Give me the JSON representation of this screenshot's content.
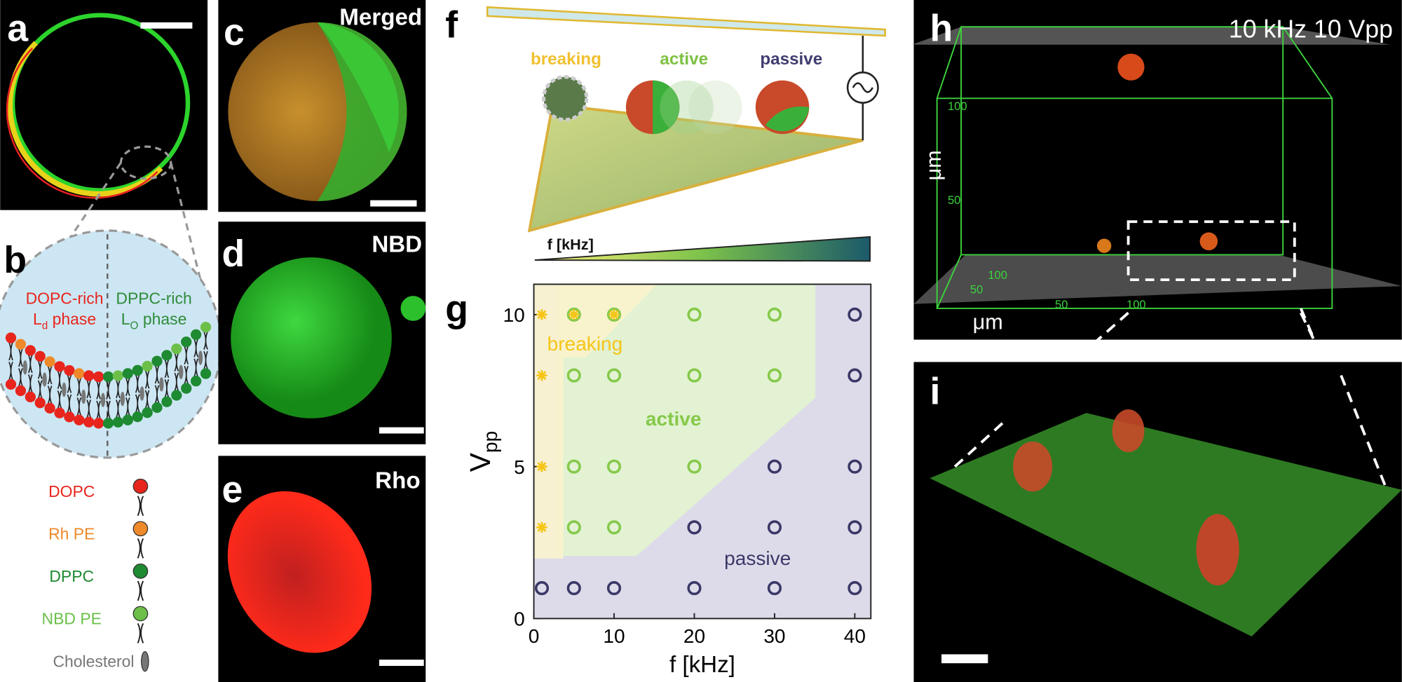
{
  "panel_labels": [
    "a",
    "b",
    "c",
    "d",
    "e",
    "f",
    "g",
    "h",
    "i"
  ],
  "images": {
    "c": "Merged",
    "d": "NBD",
    "e": "Rho"
  },
  "panel_b": {
    "left_title": "DOPC-rich",
    "left_phase": {
      "base": "L",
      "sub": "d",
      "rest": "phase"
    },
    "right_title": "DPPC-rich",
    "right_phase": {
      "base": "L",
      "sub": "O",
      "rest": "phase"
    }
  },
  "legend": [
    {
      "name": "DOPC",
      "color": "#e8251d"
    },
    {
      "name": "Rh PE",
      "color": "#ee8a2a"
    },
    {
      "name": "DPPC",
      "color": "#1e8a32"
    },
    {
      "name": "NBD PE",
      "color": "#6cc04a"
    },
    {
      "name": "Cholesterol",
      "color": "#777777"
    }
  ],
  "panel_f": {
    "states": [
      "breaking",
      "active",
      "passive"
    ],
    "gradient_label": "f [kHz]"
  },
  "panel_h": {
    "condition": "10 kHz 10 Vpp",
    "left_ticks": [
      "100",
      "50"
    ],
    "bottom_ticks": [
      "100",
      "50",
      "50",
      "100"
    ],
    "left_unit": "μm",
    "bottom_unit": "μm"
  },
  "chart_data": {
    "type": "scatter",
    "xlabel": "f  [kHz]",
    "ylabel": {
      "base": "V",
      "sub": "pp"
    },
    "xlim": [
      0,
      42
    ],
    "ylim": [
      0,
      11
    ],
    "xticks": [
      0,
      10,
      20,
      30,
      40
    ],
    "yticks": [
      0,
      5,
      10
    ],
    "series": [
      {
        "name": "breaking",
        "color": "#f5c518",
        "marker": "asterisk",
        "x": [
          1,
          5,
          10,
          1,
          1,
          1
        ],
        "y": [
          10,
          10,
          10,
          8,
          5,
          3
        ]
      },
      {
        "name": "active",
        "color": "#86c94a",
        "marker": "circle",
        "x": [
          5,
          10,
          20,
          30,
          5,
          10,
          20,
          30,
          5,
          10,
          20,
          5,
          10
        ],
        "y": [
          10,
          10,
          10,
          10,
          8,
          8,
          8,
          8,
          5,
          5,
          5,
          3,
          3
        ]
      },
      {
        "name": "passive",
        "color": "#3b3868",
        "marker": "circle",
        "x": [
          40,
          40,
          30,
          40,
          20,
          30,
          40,
          1,
          5,
          10,
          20,
          30,
          40
        ],
        "y": [
          10,
          8,
          5,
          5,
          3,
          3,
          3,
          1,
          1,
          1,
          1,
          1,
          1
        ]
      }
    ]
  }
}
